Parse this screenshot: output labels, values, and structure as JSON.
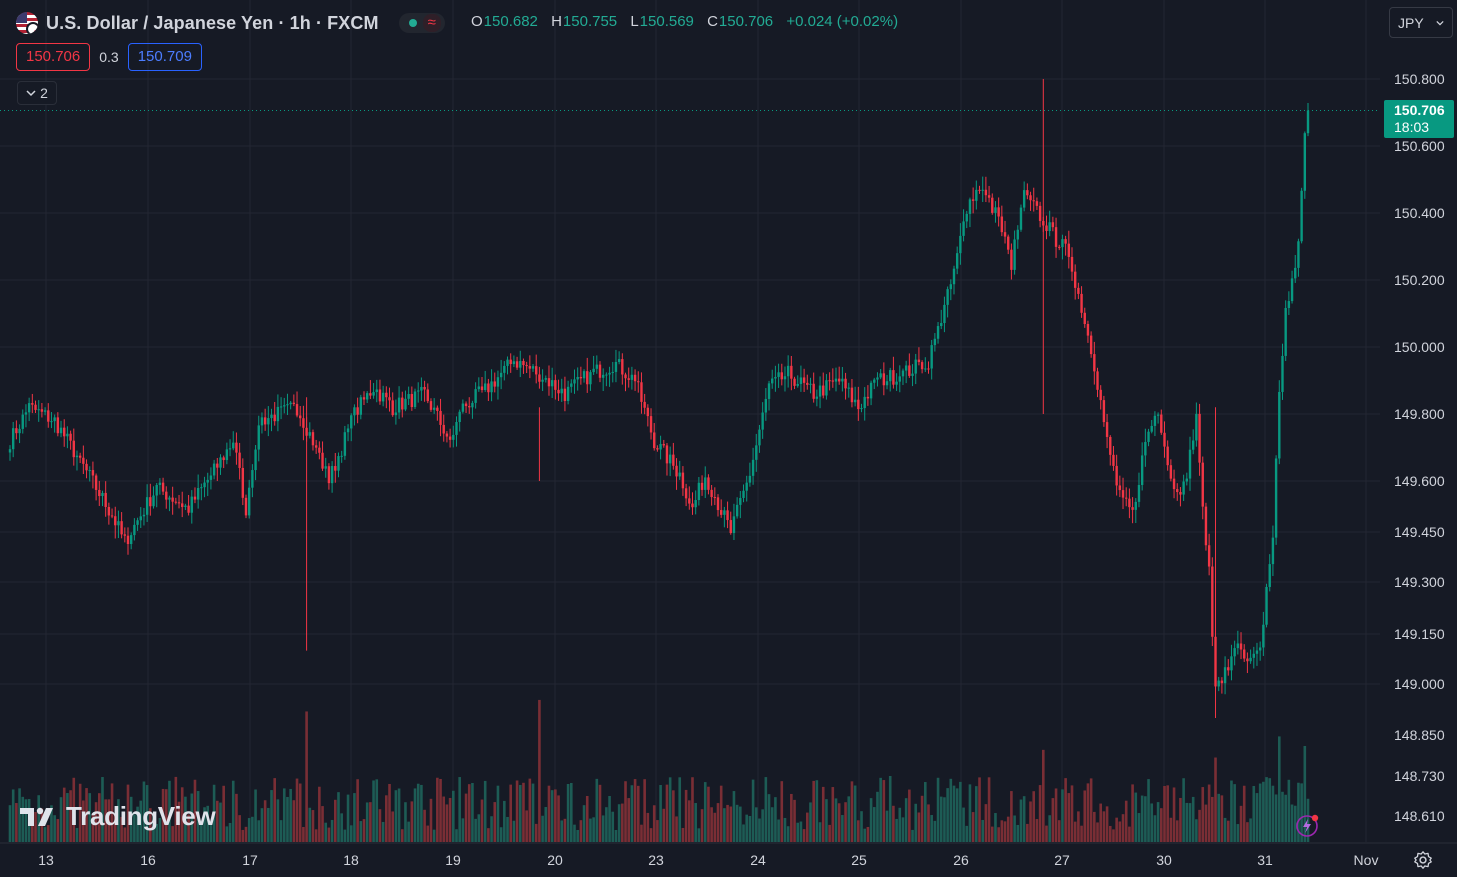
{
  "header": {
    "title": "U.S. Dollar / Japanese Yen · 1h · FXCM",
    "ohlc": [
      {
        "key": "O",
        "value": "150.682"
      },
      {
        "key": "H",
        "value": "150.755"
      },
      {
        "key": "L",
        "value": "150.569"
      },
      {
        "key": "C",
        "value": "150.706"
      }
    ],
    "change": "+0.024 (+0.02%)",
    "bid": "150.706",
    "spread": "0.3",
    "ask": "150.709",
    "indicators_collapsed": "2",
    "currency": "JPY"
  },
  "last_price": {
    "price": "150.706",
    "countdown": "18:03"
  },
  "brand": "TradingView",
  "colors": {
    "up": "#089981",
    "down": "#f23645",
    "background": "#161a25",
    "grid": "#232632",
    "text": "#d1d4dc"
  },
  "chart_data": {
    "type": "candlestick",
    "interval": "1h",
    "y_ticks": [
      150.8,
      150.6,
      150.4,
      150.2,
      150.0,
      149.8,
      149.6,
      149.45,
      149.3,
      149.15,
      149.0,
      148.85,
      148.73,
      148.61
    ],
    "y_tick_labels": [
      "150.800",
      "150.600",
      "150.400",
      "150.200",
      "150.000",
      "149.800",
      "149.600",
      "149.450",
      "149.300",
      "149.150",
      "149.000",
      "148.850",
      "148.730",
      "148.610"
    ],
    "x_tick_labels": [
      "13",
      "16",
      "17",
      "18",
      "19",
      "20",
      "23",
      "24",
      "25",
      "26",
      "27",
      "30",
      "31",
      "Nov"
    ],
    "last_close": 150.706,
    "anchors": [
      [
        0,
        149.72
      ],
      [
        6,
        149.82
      ],
      [
        14,
        149.78
      ],
      [
        22,
        149.66
      ],
      [
        32,
        149.5
      ],
      [
        36,
        149.42
      ],
      [
        46,
        149.58
      ],
      [
        56,
        149.52
      ],
      [
        64,
        149.63
      ],
      [
        70,
        149.72
      ],
      [
        74,
        149.52
      ],
      [
        78,
        149.78
      ],
      [
        90,
        149.82
      ],
      [
        96,
        149.7
      ],
      [
        100,
        149.6
      ],
      [
        108,
        149.8
      ],
      [
        114,
        149.88
      ],
      [
        120,
        149.82
      ],
      [
        130,
        149.86
      ],
      [
        138,
        149.72
      ],
      [
        142,
        149.82
      ],
      [
        150,
        149.88
      ],
      [
        158,
        149.96
      ],
      [
        166,
        149.92
      ],
      [
        174,
        149.86
      ],
      [
        182,
        149.92
      ],
      [
        190,
        149.95
      ],
      [
        196,
        149.9
      ],
      [
        202,
        149.72
      ],
      [
        210,
        149.62
      ],
      [
        214,
        149.52
      ],
      [
        218,
        149.62
      ],
      [
        226,
        149.45
      ],
      [
        232,
        149.62
      ],
      [
        238,
        149.88
      ],
      [
        244,
        149.92
      ],
      [
        252,
        149.86
      ],
      [
        260,
        149.9
      ],
      [
        266,
        149.82
      ],
      [
        272,
        149.9
      ],
      [
        280,
        149.92
      ],
      [
        288,
        149.96
      ],
      [
        292,
        150.08
      ],
      [
        296,
        150.22
      ],
      [
        300,
        150.42
      ],
      [
        304,
        150.48
      ],
      [
        310,
        150.38
      ],
      [
        314,
        150.25
      ],
      [
        318,
        150.45
      ],
      [
        324,
        150.38
      ],
      [
        328,
        150.32
      ],
      [
        332,
        150.28
      ],
      [
        336,
        150.12
      ],
      [
        340,
        149.95
      ],
      [
        344,
        149.72
      ],
      [
        348,
        149.55
      ],
      [
        352,
        149.5
      ],
      [
        356,
        149.72
      ],
      [
        360,
        149.82
      ],
      [
        364,
        149.6
      ],
      [
        368,
        149.58
      ],
      [
        372,
        149.78
      ],
      [
        374,
        149.5
      ],
      [
        376,
        149.35
      ],
      [
        378,
        148.98
      ],
      [
        382,
        149.05
      ],
      [
        384,
        149.12
      ],
      [
        388,
        149.05
      ],
      [
        392,
        149.1
      ],
      [
        396,
        149.45
      ],
      [
        398,
        149.85
      ],
      [
        400,
        150.1
      ],
      [
        402,
        150.22
      ],
      [
        404,
        150.3
      ],
      [
        406,
        150.62
      ],
      [
        407,
        150.706
      ]
    ],
    "volume_spikes": [
      {
        "bar": 93,
        "rel": 0.68
      },
      {
        "bar": 166,
        "rel": 0.74
      },
      {
        "bar": 324,
        "rel": 0.48
      },
      {
        "bar": 378,
        "rel": 0.44
      },
      {
        "bar": 398,
        "rel": 0.55
      },
      {
        "bar": 406,
        "rel": 0.5
      }
    ]
  }
}
